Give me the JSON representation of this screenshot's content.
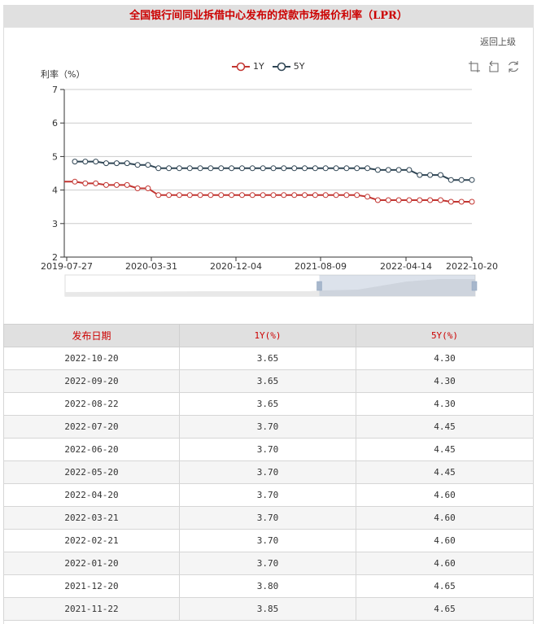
{
  "header": {
    "title": "全国银行间同业拆借中心发布的贷款市场报价利率（LPR）",
    "back_link": "返回上级"
  },
  "toolbox": {
    "icons": [
      "zoom-icon",
      "zoom-reset-icon",
      "restore-icon"
    ]
  },
  "colors": {
    "series_1y": "#c23531",
    "series_5y": "#2f4554",
    "title_red": "#cc0000",
    "header_bg": "#e0e0e0"
  },
  "chart_data": {
    "type": "line",
    "title": "全国银行间同业拆借中心发布的贷款市场报价利率（LPR）",
    "xlabel": "",
    "ylabel": "利率（%）",
    "ylim": [
      2,
      7
    ],
    "yticks": [
      2,
      3,
      4,
      5,
      6,
      7
    ],
    "x_tick_labels": [
      "2019-07-27",
      "2020-03-31",
      "2020-12-04",
      "2021-08-09",
      "2022-04-14",
      "2022-10-20"
    ],
    "grid": true,
    "legend": [
      "1Y",
      "5Y"
    ],
    "legend_position": "top",
    "x": [
      "2019-08-20",
      "2019-09-20",
      "2019-10-21",
      "2019-11-20",
      "2019-12-20",
      "2020-01-20",
      "2020-02-20",
      "2020-03-20",
      "2020-04-20",
      "2020-05-20",
      "2020-06-22",
      "2020-07-20",
      "2020-08-20",
      "2020-09-21",
      "2020-10-20",
      "2020-11-20",
      "2020-12-21",
      "2021-01-20",
      "2021-02-20",
      "2021-03-22",
      "2021-04-20",
      "2021-05-20",
      "2021-06-21",
      "2021-07-20",
      "2021-08-20",
      "2021-09-22",
      "2021-10-20",
      "2021-11-22",
      "2021-12-20",
      "2022-01-20",
      "2022-02-21",
      "2022-03-21",
      "2022-04-20",
      "2022-05-20",
      "2022-06-20",
      "2022-07-20",
      "2022-08-22",
      "2022-09-20",
      "2022-10-20"
    ],
    "series": [
      {
        "name": "1Y",
        "values": [
          4.25,
          4.2,
          4.2,
          4.15,
          4.15,
          4.15,
          4.05,
          4.05,
          3.85,
          3.85,
          3.85,
          3.85,
          3.85,
          3.85,
          3.85,
          3.85,
          3.85,
          3.85,
          3.85,
          3.85,
          3.85,
          3.85,
          3.85,
          3.85,
          3.85,
          3.85,
          3.85,
          3.85,
          3.8,
          3.7,
          3.7,
          3.7,
          3.7,
          3.7,
          3.7,
          3.7,
          3.65,
          3.65,
          3.65
        ]
      },
      {
        "name": "5Y",
        "values": [
          4.85,
          4.85,
          4.85,
          4.8,
          4.8,
          4.8,
          4.75,
          4.75,
          4.65,
          4.65,
          4.65,
          4.65,
          4.65,
          4.65,
          4.65,
          4.65,
          4.65,
          4.65,
          4.65,
          4.65,
          4.65,
          4.65,
          4.65,
          4.65,
          4.65,
          4.65,
          4.65,
          4.65,
          4.65,
          4.6,
          4.6,
          4.6,
          4.6,
          4.45,
          4.45,
          4.45,
          4.3,
          4.3,
          4.3
        ]
      }
    ],
    "datazoom": {
      "start_label": "2019-07-27",
      "end_label": "2022-10-20",
      "selected_range_pct": [
        62,
        100
      ]
    }
  },
  "table": {
    "headers": [
      "发布日期",
      "1Y(%)",
      "5Y(%)"
    ],
    "rows": [
      [
        "2022-10-20",
        "3.65",
        "4.30"
      ],
      [
        "2022-09-20",
        "3.65",
        "4.30"
      ],
      [
        "2022-08-22",
        "3.65",
        "4.30"
      ],
      [
        "2022-07-20",
        "3.70",
        "4.45"
      ],
      [
        "2022-06-20",
        "3.70",
        "4.45"
      ],
      [
        "2022-05-20",
        "3.70",
        "4.45"
      ],
      [
        "2022-04-20",
        "3.70",
        "4.60"
      ],
      [
        "2022-03-21",
        "3.70",
        "4.60"
      ],
      [
        "2022-02-21",
        "3.70",
        "4.60"
      ],
      [
        "2022-01-20",
        "3.70",
        "4.60"
      ],
      [
        "2021-12-20",
        "3.80",
        "4.65"
      ],
      [
        "2021-11-22",
        "3.85",
        "4.65"
      ]
    ]
  }
}
